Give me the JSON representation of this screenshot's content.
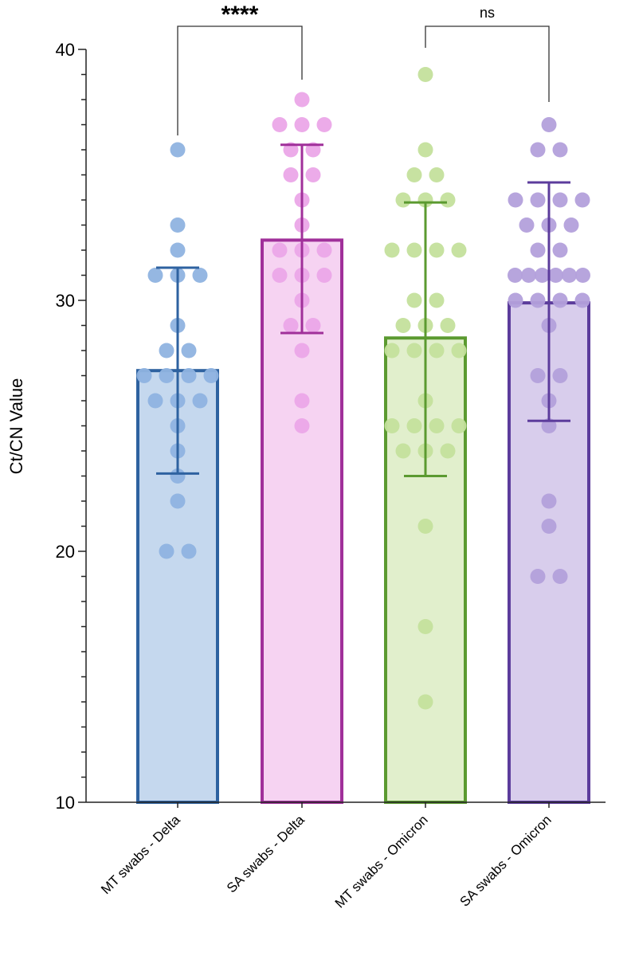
{
  "chart_data": {
    "type": "bar",
    "title": "",
    "xlabel": "",
    "ylabel": "Ct/CN Value",
    "ylim": [
      10,
      40
    ],
    "yticks": [
      10,
      20,
      30,
      40
    ],
    "minor_tick_step": 1,
    "grid": false,
    "categories": [
      "MT swabs - Delta",
      "SA swabs - Delta",
      "MT swabs - Omicron",
      "SA swabs - Omicron"
    ],
    "series": [
      {
        "name": "MT swabs - Delta",
        "mean": 27.2,
        "error": [
          23.1,
          31.3
        ],
        "points": [
          36,
          33,
          32,
          31,
          31,
          31,
          29,
          28,
          28,
          27,
          27,
          27,
          27,
          26,
          26,
          26,
          25,
          24,
          23,
          22,
          20,
          20
        ],
        "fill": "#c5d8ee",
        "stroke": "#2e62a0",
        "dot": "#8fb3e0"
      },
      {
        "name": "SA swabs - Delta",
        "mean": 32.4,
        "error": [
          28.7,
          36.2
        ],
        "points": [
          38,
          37,
          37,
          37,
          36,
          36,
          35,
          35,
          34,
          33,
          32,
          32,
          32,
          31,
          31,
          31,
          30,
          29,
          29,
          28,
          26,
          25
        ],
        "fill": "#f6d3f2",
        "stroke": "#a0309a",
        "dot": "#eba6e8"
      },
      {
        "name": "MT swabs - Omicron",
        "mean": 28.5,
        "error": [
          23.0,
          33.9
        ],
        "points": [
          39,
          36,
          35,
          35,
          34,
          34,
          34,
          32,
          32,
          32,
          32,
          30,
          30,
          29,
          29,
          29,
          28,
          28,
          28,
          28,
          26,
          25,
          25,
          25,
          25,
          24,
          24,
          24,
          21,
          17,
          14
        ],
        "fill": "#e1efcc",
        "stroke": "#5b9a30",
        "dot": "#c4e09c"
      },
      {
        "name": "SA swabs - Omicron",
        "mean": 29.9,
        "error": [
          25.2,
          34.7
        ],
        "points": [
          37,
          36,
          36,
          34,
          34,
          34,
          34,
          33,
          33,
          33,
          32,
          32,
          31,
          31,
          31,
          31,
          31,
          31,
          30,
          30,
          30,
          30,
          29,
          27,
          27,
          26,
          25,
          22,
          21,
          19,
          19
        ],
        "fill": "#d8cdec",
        "stroke": "#5c3c9c",
        "dot": "#b3a0db"
      }
    ],
    "annotations": [
      {
        "groups": [
          0,
          1
        ],
        "label": "****"
      },
      {
        "groups": [
          2,
          3
        ],
        "label": "ns"
      }
    ]
  }
}
